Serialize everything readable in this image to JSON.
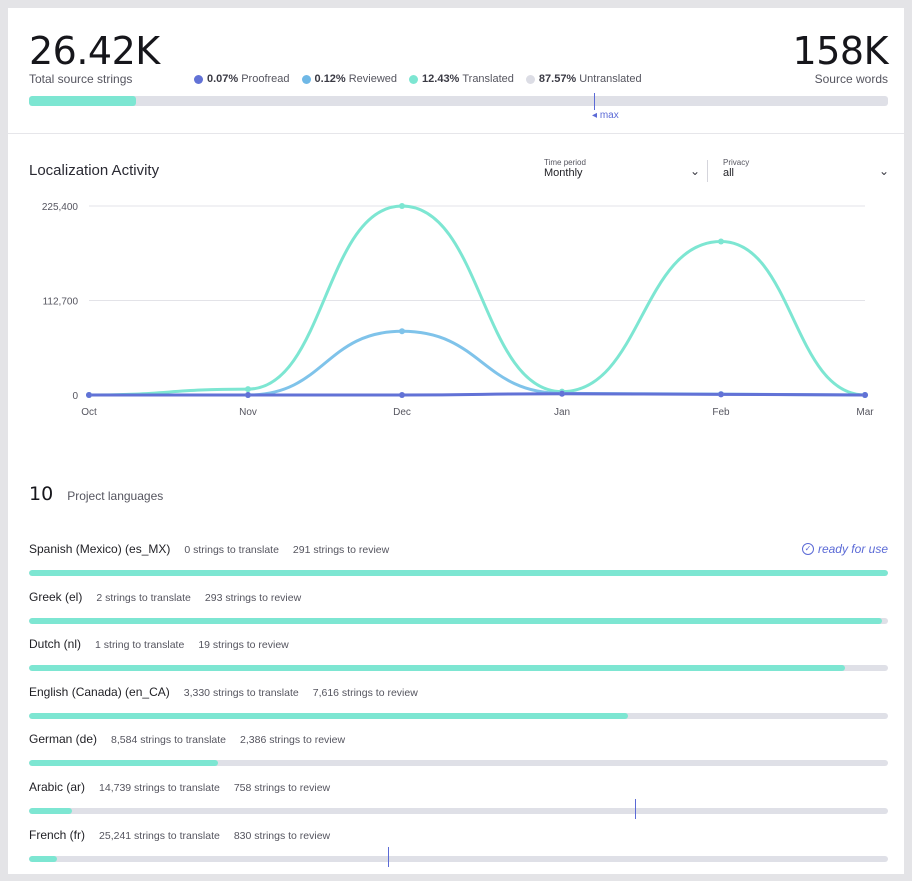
{
  "summary": {
    "total_strings": "26.42K",
    "total_strings_label": "Total source strings",
    "source_words": "158K",
    "source_words_label": "Source words",
    "max_label": "max",
    "progress": {
      "proofread_pct": 0.07,
      "reviewed_pct": 0.12,
      "translated_pct": 12.43
    },
    "legend": [
      {
        "pct": "0.07%",
        "label": "Proofread",
        "color": "#6272d6"
      },
      {
        "pct": "0.12%",
        "label": "Reviewed",
        "color": "#6fb8e6"
      },
      {
        "pct": "12.43%",
        "label": "Translated",
        "color": "#7de6d2"
      },
      {
        "pct": "87.57%",
        "label": "Untranslated",
        "color": "#dcdde5"
      }
    ]
  },
  "activity": {
    "title": "Localization Activity",
    "time_period_label": "Time period",
    "time_period_value": "Monthly",
    "privacy_label": "Privacy",
    "privacy_value": "all"
  },
  "chart_data": {
    "type": "line",
    "categories": [
      "Oct",
      "Nov",
      "Dec",
      "Jan",
      "Feb",
      "Mar"
    ],
    "yticks": [
      "225,400",
      "112,700",
      "0"
    ],
    "ylim": [
      0,
      225400
    ],
    "grid": true,
    "series": [
      {
        "color": "#7de6d2",
        "values": [
          0,
          7000,
          225400,
          4000,
          183000,
          0
        ]
      },
      {
        "color": "#7fc3ea",
        "values": [
          0,
          0,
          76000,
          2000,
          1000,
          0
        ]
      },
      {
        "color": "#6272d6",
        "values": [
          0,
          0,
          0,
          1500,
          800,
          0
        ]
      }
    ]
  },
  "languages_section": {
    "count": "10",
    "label": "Project languages",
    "ready_label": "ready for use",
    "items": [
      {
        "name": "Spanish (Mexico) (es_MX)",
        "to_translate": "0 strings to translate",
        "to_review": "291 strings to review",
        "translated_pct": 100,
        "reviewed_pct": 0,
        "ready": true
      },
      {
        "name": "Greek (el)",
        "to_translate": "2 strings to translate",
        "to_review": "293 strings to review",
        "translated_pct": 99.3,
        "reviewed_pct": 0,
        "ready": false
      },
      {
        "name": "Dutch (nl)",
        "to_translate": "1 string to translate",
        "to_review": "19 strings to review",
        "translated_pct": 95,
        "reviewed_pct": 0,
        "ready": false
      },
      {
        "name": "English (Canada) (en_CA)",
        "to_translate": "3,330 strings to translate",
        "to_review": "7,616 strings to review",
        "translated_pct": 69.7,
        "reviewed_pct": 0,
        "ready": false
      },
      {
        "name": "German (de)",
        "to_translate": "8,584 strings to translate",
        "to_review": "2,386 strings to review",
        "translated_pct": 22,
        "reviewed_pct": 0,
        "ready": false
      },
      {
        "name": "Arabic (ar)",
        "to_translate": "14,739 strings to translate",
        "to_review": "758 strings to review",
        "translated_pct": 5,
        "reviewed_pct": 0,
        "ready": false,
        "marker_pct": 70.6
      },
      {
        "name": "French (fr)",
        "to_translate": "25,241 strings to translate",
        "to_review": "830 strings to review",
        "translated_pct": 3.3,
        "reviewed_pct": 0,
        "ready": false,
        "marker_pct": 41.8
      }
    ]
  }
}
